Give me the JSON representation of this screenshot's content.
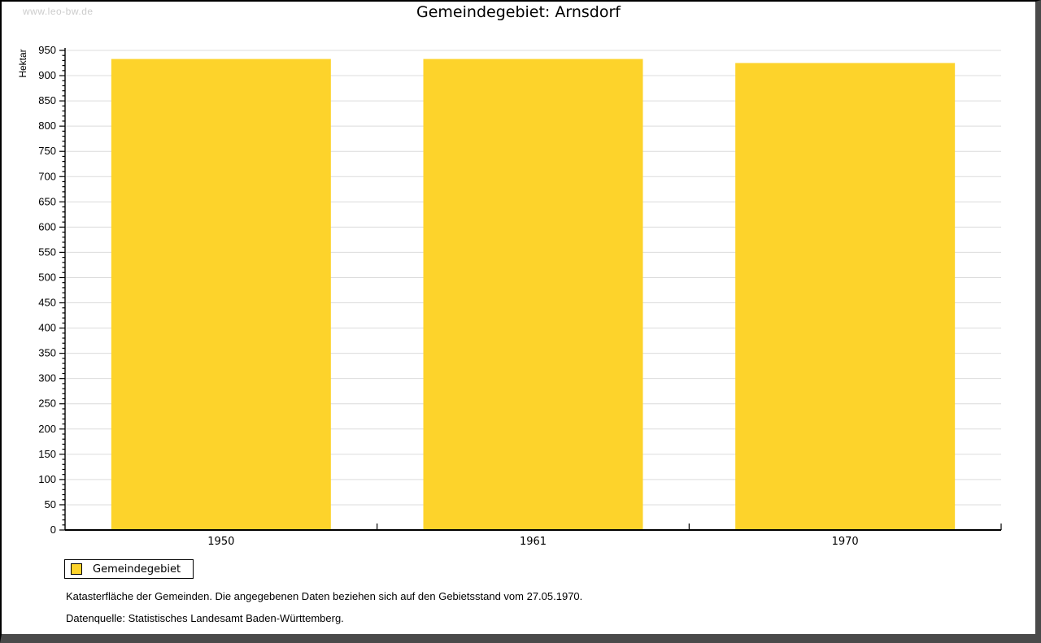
{
  "watermark": "www.leo-bw.de",
  "chart_data": {
    "type": "bar",
    "title": "Gemeindegebiet: Arnsdorf",
    "xlabel": "",
    "ylabel": "Hektar",
    "categories": [
      "1950",
      "1961",
      "1970"
    ],
    "series": [
      {
        "name": "Gemeindegebiet",
        "color": "#FDD32B",
        "values": [
          933,
          933,
          925
        ]
      }
    ],
    "ylim": [
      0,
      950
    ],
    "ytick_major": 50,
    "ytick_minor": 10,
    "grid": true,
    "legend_position": "bottom-left"
  },
  "footnotes": [
    "Katasterfläche der Gemeinden. Die angegebenen Daten beziehen sich auf den Gebietsstand vom 27.05.1970.",
    "Datenquelle: Statistisches Landesamt Baden-Württemberg."
  ],
  "colors": {
    "bar": "#FDD32B",
    "grid": "#dcdcdc",
    "axis": "#000000",
    "watermark": "#cccccc",
    "frame": "#4a4a4a",
    "background": "#ffffff"
  }
}
